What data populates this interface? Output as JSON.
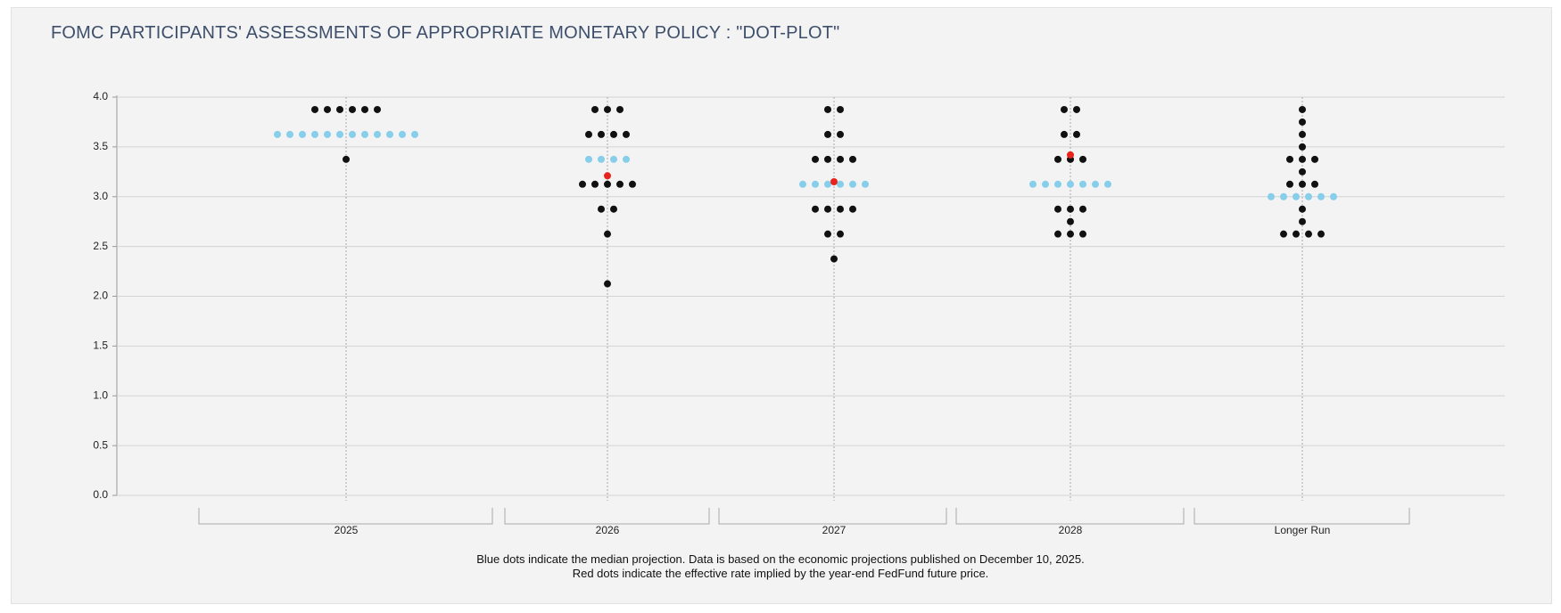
{
  "chart_data": {
    "type": "dot-plot",
    "title": "FOMC PARTICIPANTS' ASSESSMENTS OF APPROPRIATE MONETARY POLICY : \"DOT-PLOT\"",
    "notes": [
      "Blue dots indicate the median projection. Data is based on the economic projections published on December 10, 2025.",
      "Red dots indicate the effective rate implied by the year-end FedFund future price."
    ],
    "categories": [
      "2025",
      "2026",
      "2027",
      "2028",
      "Longer Run"
    ],
    "rates": [
      [
        3.875,
        3.625,
        3.375
      ],
      [
        3.875,
        3.625,
        3.375,
        3.125,
        2.875,
        2.625,
        2.125
      ],
      [
        3.875,
        3.625,
        3.375,
        3.125,
        2.875,
        2.625,
        2.375
      ],
      [
        3.875,
        3.625,
        3.375,
        3.125,
        2.875,
        2.75,
        2.625
      ],
      [
        3.875,
        3.75,
        3.625,
        3.5,
        3.375,
        3.25,
        3.125,
        3.0,
        2.875,
        2.75,
        2.625
      ]
    ],
    "counts": [
      [
        6,
        12,
        1
      ],
      [
        3,
        4,
        4,
        5,
        2,
        1,
        1
      ],
      [
        2,
        2,
        4,
        6,
        4,
        2,
        1
      ],
      [
        2,
        2,
        3,
        7,
        3,
        1,
        3
      ],
      [
        1,
        1,
        1,
        1,
        3,
        1,
        3,
        6,
        1,
        1,
        4
      ]
    ],
    "medians": [
      3.625,
      3.375,
      3.125,
      3.125,
      3.0
    ],
    "implied": [
      null,
      3.21,
      3.15,
      3.42,
      null
    ],
    "dot_color": "#111111",
    "median_color": "#87ceeb",
    "implied_color": "#e8231e",
    "ylim": [
      0,
      4.0
    ],
    "yticks": [
      {
        "value": 0,
        "label": "0.0"
      },
      {
        "value": 0.5,
        "label": "0.5"
      },
      {
        "value": 1,
        "label": "1.0"
      },
      {
        "value": 1.5,
        "label": "1.5"
      },
      {
        "value": 2,
        "label": "2.0"
      },
      {
        "value": 2.5,
        "label": "2.5"
      },
      {
        "value": 3,
        "label": "3.0"
      },
      {
        "value": 3.5,
        "label": "3.5"
      },
      {
        "value": 4,
        "label": "4.0"
      }
    ],
    "grid": true
  }
}
